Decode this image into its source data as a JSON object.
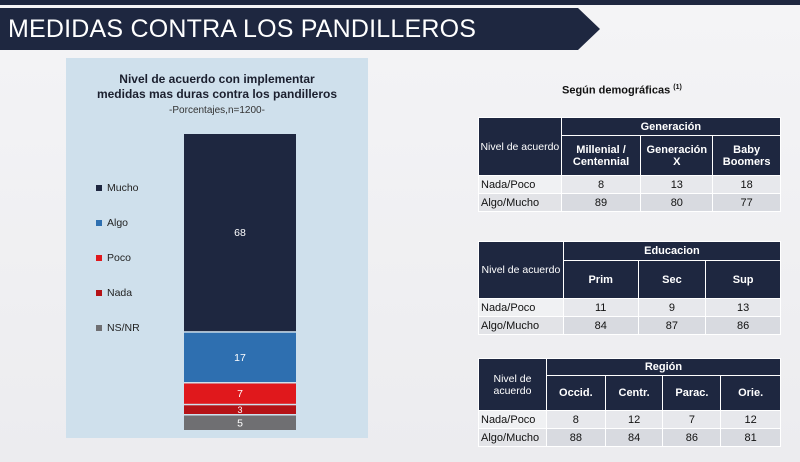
{
  "page_title": "MEDIDAS CONTRA LOS PANDILLEROS",
  "chart_data": {
    "type": "bar",
    "stacked": true,
    "title_lines": [
      "Nivel de acuerdo con implementar",
      "medidas mas duras contra los pandilleros"
    ],
    "subtitle": "-Porcentajes,n=1200-",
    "series": [
      {
        "name": "Mucho",
        "value": 68,
        "color": "#1e2740"
      },
      {
        "name": "Algo",
        "value": 17,
        "color": "#2e6fb0"
      },
      {
        "name": "Poco",
        "value": 7,
        "color": "#e0181c"
      },
      {
        "name": "Nada",
        "value": 3,
        "color": "#b51216"
      },
      {
        "name": "NS/NR",
        "value": 5,
        "color": "#6f6f72"
      }
    ],
    "legend_order": [
      "Mucho",
      "Algo",
      "Poco",
      "Nada",
      "NS/NR"
    ]
  },
  "demographics": {
    "heading": "Según demográficas",
    "footnote_mark": "(1)",
    "tables": [
      {
        "group": "Generación",
        "row_header": "Nivel de acuerdo",
        "columns": [
          "Millenial / Centennial",
          "Generación X",
          "Baby Boomers"
        ],
        "rows": [
          {
            "label": "Nada/Poco",
            "values": [
              "8",
              "13",
              "18"
            ]
          },
          {
            "label": "Algo/Mucho",
            "values": [
              "89",
              "80",
              "77"
            ]
          }
        ]
      },
      {
        "group": "Educacion",
        "row_header": "Nivel de acuerdo",
        "columns": [
          "Prim",
          "Sec",
          "Sup"
        ],
        "rows": [
          {
            "label": "Nada/Poco",
            "values": [
              "11",
              "9",
              "13"
            ]
          },
          {
            "label": "Algo/Mucho",
            "values": [
              "84",
              "87",
              "86"
            ]
          }
        ]
      },
      {
        "group": "Región",
        "row_header": "Nivel de acuerdo",
        "columns": [
          "Occid.",
          "Centr.",
          "Parac.",
          "Orie."
        ],
        "rows": [
          {
            "label": "Nada/Poco",
            "values": [
              "8",
              "12",
              "7",
              "12"
            ]
          },
          {
            "label": "Algo/Mucho",
            "values": [
              "88",
              "84",
              "86",
              "81"
            ]
          }
        ]
      }
    ]
  }
}
